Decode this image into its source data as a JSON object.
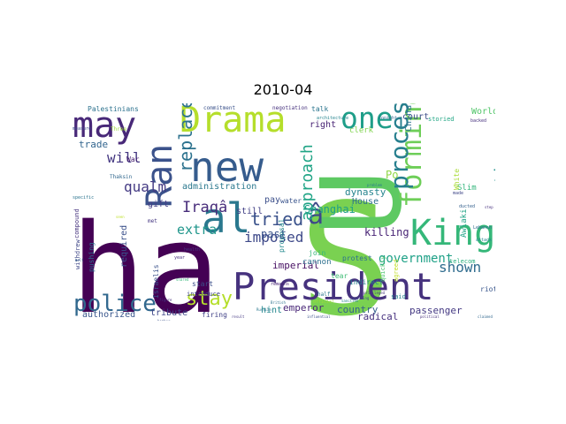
{
  "figure": {
    "title": "2010-04"
  },
  "wordcloud": {
    "background": "#ffffff",
    "colormap": "viridis",
    "words": [
      {
        "text": "ha",
        "color": "#440154"
      },
      {
        "text": "S",
        "color": "#7ad151"
      },
      {
        "text": "U",
        "color": "#5ec962"
      },
      {
        "text": "President",
        "color": "#46327e"
      },
      {
        "text": "new",
        "color": "#365c8d"
      },
      {
        "text": "Drama",
        "color": "#b5de2b"
      },
      {
        "text": "Ran",
        "color": "#3b528b"
      },
      {
        "text": "may",
        "color": "#482878"
      },
      {
        "text": "al",
        "color": "#2a788e"
      },
      {
        "text": "King",
        "color": "#35b779"
      },
      {
        "text": "one",
        "color": "#1f9e89"
      },
      {
        "text": "police",
        "color": "#31688e"
      },
      {
        "text": "stay",
        "color": "#b5de2b"
      },
      {
        "text": "forming",
        "color": "#6ece58"
      },
      {
        "text": "process",
        "color": "#277f8e"
      },
      {
        "text": "â",
        "color": "#3e4989"
      },
      {
        "text": "Iraqâ",
        "color": "#472c7a"
      },
      {
        "text": "tried",
        "color": "#3b528b"
      },
      {
        "text": "replace",
        "color": "#2c728e"
      },
      {
        "text": "approach",
        "color": "#20a486"
      },
      {
        "text": "scrutiny",
        "color": "#21918c"
      },
      {
        "text": "imposed",
        "color": "#3e4989"
      },
      {
        "text": "government",
        "color": "#1fa187"
      },
      {
        "text": "will",
        "color": "#453882"
      },
      {
        "text": "qualm",
        "color": "#443a83"
      },
      {
        "text": "extra",
        "color": "#1f968b"
      },
      {
        "text": "shown",
        "color": "#2f6c8e"
      },
      {
        "text": "Shanghai",
        "color": "#1fa088"
      },
      {
        "text": "dynasty",
        "color": "#25848e"
      },
      {
        "text": "killing",
        "color": "#482475"
      },
      {
        "text": "past",
        "color": "#3a548c"
      },
      {
        "text": "imperial",
        "color": "#471063"
      },
      {
        "text": "emperor",
        "color": "#482677"
      },
      {
        "text": "country",
        "color": "#355f8d"
      },
      {
        "text": "passenger",
        "color": "#443983"
      },
      {
        "text": "radical",
        "color": "#46307e"
      },
      {
        "text": "tribute",
        "color": "#3f4788"
      },
      {
        "text": "court",
        "color": "#3d4e8a"
      },
      {
        "text": "administration",
        "color": "#2a788e"
      },
      {
        "text": "trade",
        "color": "#32658e"
      },
      {
        "text": "gift",
        "color": "#433e85"
      },
      {
        "text": "required",
        "color": "#3b518b"
      },
      {
        "text": "authorized",
        "color": "#39568c"
      },
      {
        "text": "hint",
        "color": "#24878e"
      },
      {
        "text": "House",
        "color": "#2e6f8e"
      },
      {
        "text": "China",
        "color": "#2c738e"
      },
      {
        "text": "World",
        "color": "#51c569"
      },
      {
        "text": "right",
        "color": "#482374"
      },
      {
        "text": "Slim",
        "color": "#31b57b"
      },
      {
        "text": "Awlaki",
        "color": "#20a386"
      },
      {
        "text": "Po",
        "color": "#8fd744"
      },
      {
        "text": "pay",
        "color": "#3c4f8a"
      },
      {
        "text": "still",
        "color": "#424086"
      },
      {
        "text": "cannon",
        "color": "#2d708e"
      },
      {
        "text": "proposal",
        "color": "#23898e"
      },
      {
        "text": "clerk",
        "color": "#7fd34e"
      },
      {
        "text": "talk",
        "color": "#2b758e"
      },
      {
        "text": "water",
        "color": "#3a548c"
      },
      {
        "text": "Palestinians",
        "color": "#2c728e"
      },
      {
        "text": "Israelis",
        "color": "#3b528b"
      },
      {
        "text": "pushing",
        "color": "#2e6e8e"
      },
      {
        "text": "withdrew",
        "color": "#3f4788"
      },
      {
        "text": "compound",
        "color": "#46337f"
      },
      {
        "text": "introduce",
        "color": "#404588"
      },
      {
        "text": "start",
        "color": "#3d4e8a"
      },
      {
        "text": "firing",
        "color": "#414287"
      },
      {
        "text": "riot",
        "color": "#39568c"
      },
      {
        "text": "protest",
        "color": "#2d718e"
      },
      {
        "text": "indirect",
        "color": "#26828e"
      },
      {
        "text": "join",
        "color": "#35b779"
      },
      {
        "text": "tear",
        "color": "#3dbc74"
      },
      {
        "text": "White",
        "color": "#a8db34"
      },
      {
        "text": "War",
        "color": "#482071"
      },
      {
        "text": "storied",
        "color": "#22a785"
      },
      {
        "text": "quickly",
        "color": "#4ac16d"
      },
      {
        "text": "agreed",
        "color": "#c0df25"
      },
      {
        "text": "telecom",
        "color": "#29af7f"
      },
      {
        "text": "said",
        "color": "#277f8e"
      },
      {
        "text": "commitment",
        "color": "#3b528b"
      },
      {
        "text": "negotiation",
        "color": "#46327e"
      },
      {
        "text": "architecture",
        "color": "#25848e"
      },
      {
        "text": "Thaksin",
        "color": "#31688e"
      },
      {
        "text": "met",
        "color": "#453781"
      },
      {
        "text": "half",
        "color": "#2a788e"
      },
      {
        "text": "Three",
        "color": "#9dd93b"
      },
      {
        "text": "measure",
        "color": "#3e4a89"
      },
      {
        "text": "specific",
        "color": "#2b748e"
      },
      {
        "text": "year",
        "color": "#472f7d"
      },
      {
        "text": "health",
        "color": "#453882"
      },
      {
        "text": "remains",
        "color": "#482475"
      },
      {
        "text": "Lebanon",
        "color": "#2f6b8e"
      },
      {
        "text": "attack",
        "color": "#24868e"
      },
      {
        "text": "ducted",
        "color": "#34608d"
      },
      {
        "text": "made",
        "color": "#3f4788"
      },
      {
        "text": "backed",
        "color": "#46307e"
      },
      {
        "text": "tonight",
        "color": "#31688e"
      },
      {
        "text": "problem",
        "color": "#2a788e"
      },
      {
        "text": "influential",
        "color": "#3b528b"
      },
      {
        "text": "political",
        "color": "#472f7d"
      },
      {
        "text": "British",
        "color": "#2c728e"
      },
      {
        "text": "official",
        "color": "#9dd93b"
      },
      {
        "text": "result",
        "color": "#453882"
      },
      {
        "text": "sanction",
        "color": "#25848e"
      },
      {
        "text": "claimed",
        "color": "#31688e"
      },
      {
        "text": "privileged",
        "color": "#46327e"
      },
      {
        "text": "awaiting",
        "color": "#3e4a89"
      },
      {
        "text": "Russian",
        "color": "#2a788e"
      },
      {
        "text": "figure",
        "color": "#472f7d"
      },
      {
        "text": "shared",
        "color": "#35b779"
      },
      {
        "text": "bomber",
        "color": "#3b528b"
      },
      {
        "text": "belt",
        "color": "#34608d"
      },
      {
        "text": "seen",
        "color": "#bddf26"
      },
      {
        "text": "step",
        "color": "#46307e"
      }
    ]
  }
}
